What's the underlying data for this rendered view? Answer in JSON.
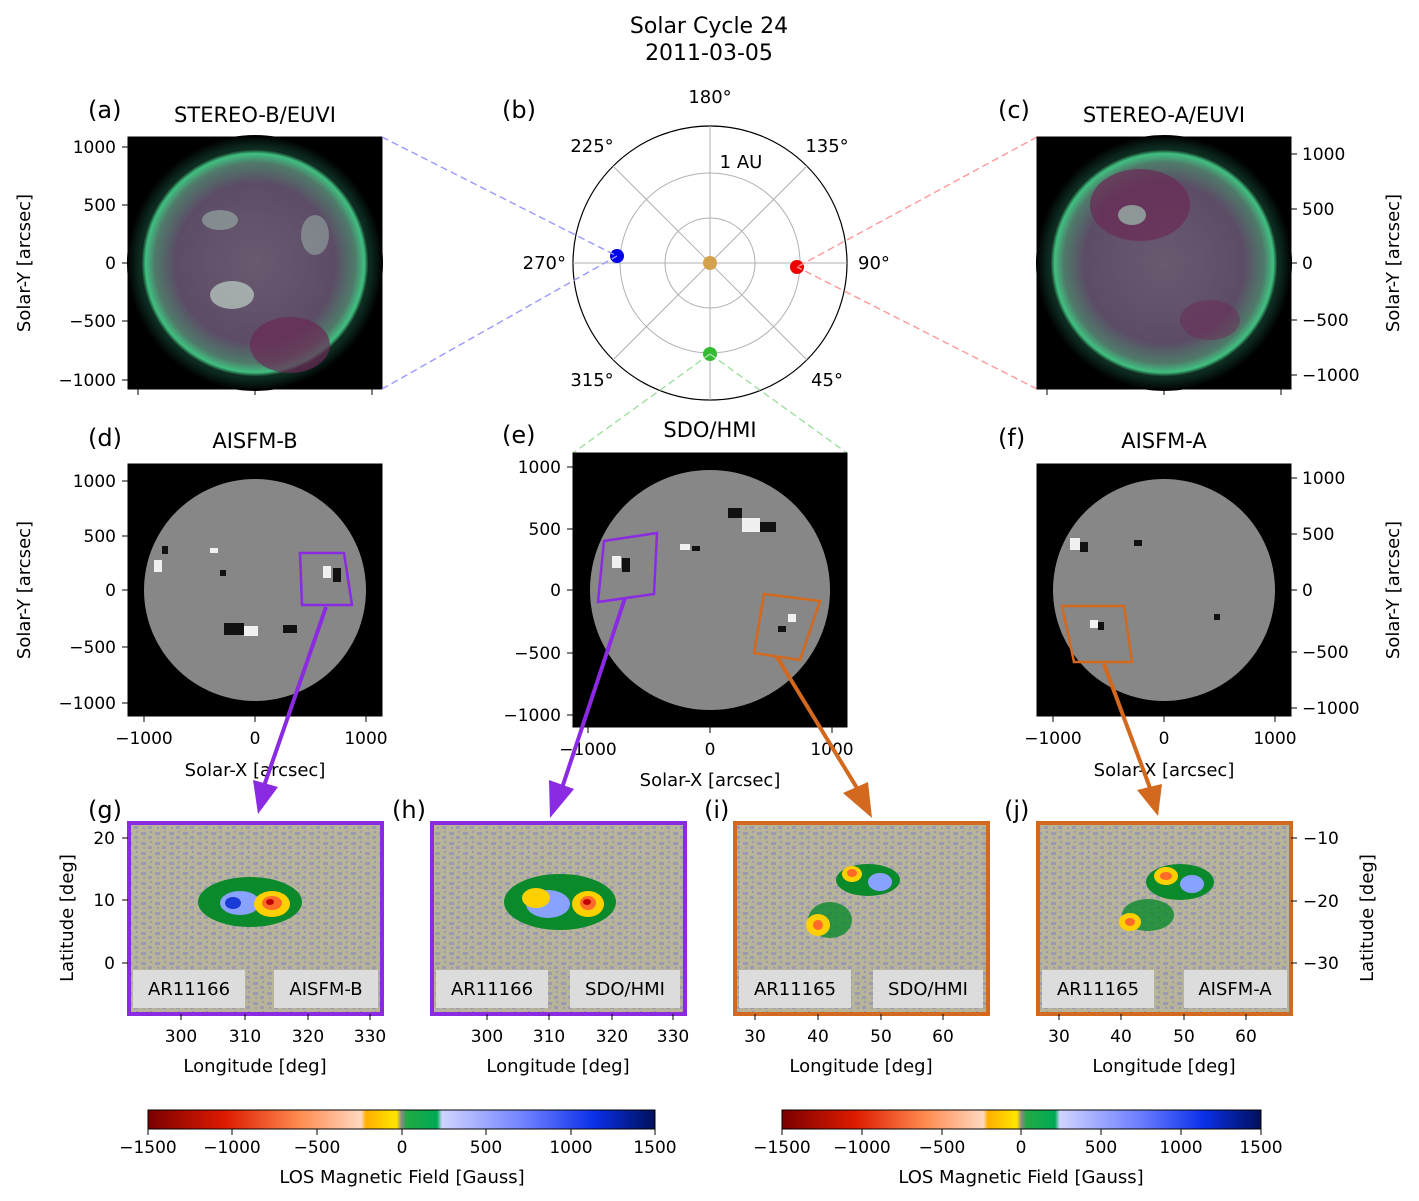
{
  "figure": {
    "title_line1": "Solar Cycle 24",
    "title_line2": "2011-03-05"
  },
  "panels": {
    "a": {
      "label": "(a)",
      "title": "STEREO-B/EUVI",
      "title_color": "#0000ee"
    },
    "b": {
      "label": "(b)"
    },
    "c": {
      "label": "(c)",
      "title": "STEREO-A/EUVI",
      "title_color": "#ee0000"
    },
    "d": {
      "label": "(d)",
      "title": "AISFM-B",
      "title_color": "#0000ee"
    },
    "e": {
      "label": "(e)",
      "title": "SDO/HMI",
      "title_color": "#008800"
    },
    "f": {
      "label": "(f)",
      "title": "AISFM-A",
      "title_color": "#ee0000"
    },
    "g": {
      "label": "(g)",
      "region": "AR11166",
      "source": "AISFM-B",
      "source_color": "#0000ee",
      "border_color": "#8a2be2"
    },
    "h": {
      "label": "(h)",
      "region": "AR11166",
      "source": "SDO/HMI",
      "source_color": "#008800",
      "border_color": "#8a2be2"
    },
    "i": {
      "label": "(i)",
      "region": "AR11165",
      "source": "SDO/HMI",
      "source_color": "#008800",
      "border_color": "#d2691e"
    },
    "j": {
      "label": "(j)",
      "region": "AR11165",
      "source": "AISFM-A",
      "source_color": "#ee0000",
      "border_color": "#d2691e"
    }
  },
  "axes": {
    "solar_y": "Solar-Y [arcsec]",
    "solar_x": "Solar-X [arcsec]",
    "latitude": "Latitude [deg]",
    "longitude": "Longitude [deg]",
    "disk_y_ticks": [
      "1000",
      "500",
      "0",
      "−500",
      "−1000"
    ],
    "disk_x_ticks": [
      "−1000",
      "0",
      "1000"
    ],
    "lat_ticks_left": [
      "20",
      "10",
      "0"
    ],
    "lat_ticks_right": [
      "−10",
      "−20",
      "−30"
    ],
    "lon_ticks_gh": [
      "300",
      "310",
      "320",
      "330"
    ],
    "lon_ticks_ij": [
      "30",
      "40",
      "50",
      "60"
    ]
  },
  "polar": {
    "angles": [
      "180°",
      "135°",
      "90°",
      "45°",
      "315°",
      "270°",
      "225°"
    ],
    "ring_label": "1 AU",
    "observers": [
      {
        "name": "STEREO-B",
        "color": "#0000ee"
      },
      {
        "name": "STEREO-A",
        "color": "#ee0000"
      },
      {
        "name": "SDO",
        "color": "#33bb33"
      },
      {
        "name": "Sun",
        "color": "#d4a24c"
      }
    ]
  },
  "colorbar": {
    "label": "LOS Magnetic Field [Gauss]",
    "ticks": [
      "−1500",
      "−1000",
      "−500",
      "0",
      "500",
      "1000",
      "1500"
    ]
  }
}
